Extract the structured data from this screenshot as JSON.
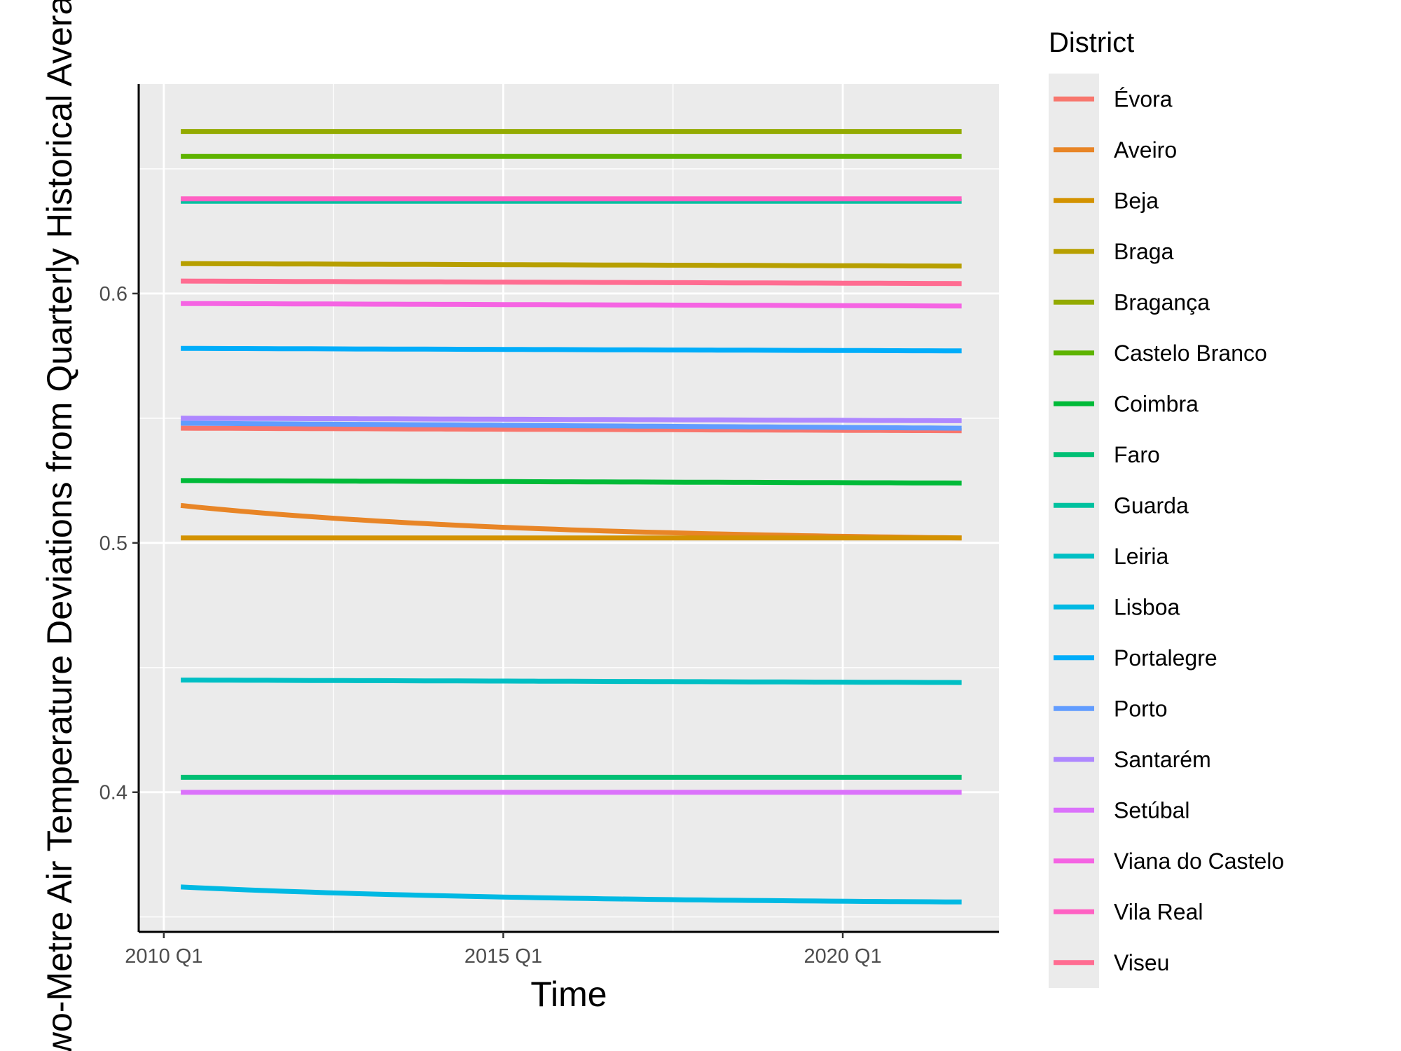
{
  "chart_data": {
    "type": "line",
    "title": "",
    "xlabel": "Time",
    "ylabel": "Two-Metre Air Temperature Deviations from Quarterly Historical Averages",
    "x_ticks": [
      {
        "value": 2010.0,
        "label": "2010 Q1"
      },
      {
        "value": 2015.0,
        "label": "2015 Q1"
      },
      {
        "value": 2020.0,
        "label": "2020 Q1"
      }
    ],
    "y_ticks": [
      0.4,
      0.5,
      0.6
    ],
    "xlim": [
      2009.63,
      2022.3
    ],
    "ylim": [
      0.344,
      0.684
    ],
    "x_range": [
      2010.25,
      2021.75
    ],
    "legend_title": "District",
    "legend_position": "right",
    "grid": true,
    "series": [
      {
        "name": "Évora",
        "color": "#F8766D",
        "start": 0.546,
        "end": 0.545
      },
      {
        "name": "Aveiro",
        "color": "#E88526",
        "start": 0.515,
        "end": 0.502,
        "curve": "decay"
      },
      {
        "name": "Beja",
        "color": "#D39200",
        "start": 0.502,
        "end": 0.502
      },
      {
        "name": "Braga",
        "color": "#B79F00",
        "start": 0.612,
        "end": 0.611
      },
      {
        "name": "Bragança",
        "color": "#93AA00",
        "start": 0.665,
        "end": 0.665
      },
      {
        "name": "Castelo Branco",
        "color": "#5EB300",
        "start": 0.655,
        "end": 0.655
      },
      {
        "name": "Coimbra",
        "color": "#00BA38",
        "start": 0.525,
        "end": 0.524
      },
      {
        "name": "Faro",
        "color": "#00BF74",
        "start": 0.406,
        "end": 0.406
      },
      {
        "name": "Guarda",
        "color": "#00C19F",
        "start": 0.637,
        "end": 0.637
      },
      {
        "name": "Leiria",
        "color": "#00BFC4",
        "start": 0.445,
        "end": 0.444
      },
      {
        "name": "Lisboa",
        "color": "#00B9E3",
        "start": 0.362,
        "end": 0.356,
        "curve": "decay"
      },
      {
        "name": "Portalegre",
        "color": "#00ADFA",
        "start": 0.578,
        "end": 0.577
      },
      {
        "name": "Porto",
        "color": "#619CFF",
        "start": 0.548,
        "end": 0.546
      },
      {
        "name": "Santarém",
        "color": "#AE87FF",
        "start": 0.55,
        "end": 0.549
      },
      {
        "name": "Setúbal",
        "color": "#DB72FB",
        "start": 0.4,
        "end": 0.4
      },
      {
        "name": "Viana do Castelo",
        "color": "#F564E3",
        "start": 0.596,
        "end": 0.595
      },
      {
        "name": "Vila Real",
        "color": "#FF61C3",
        "start": 0.638,
        "end": 0.638
      },
      {
        "name": "Viseu",
        "color": "#FF6C91",
        "start": 0.605,
        "end": 0.604
      }
    ]
  }
}
